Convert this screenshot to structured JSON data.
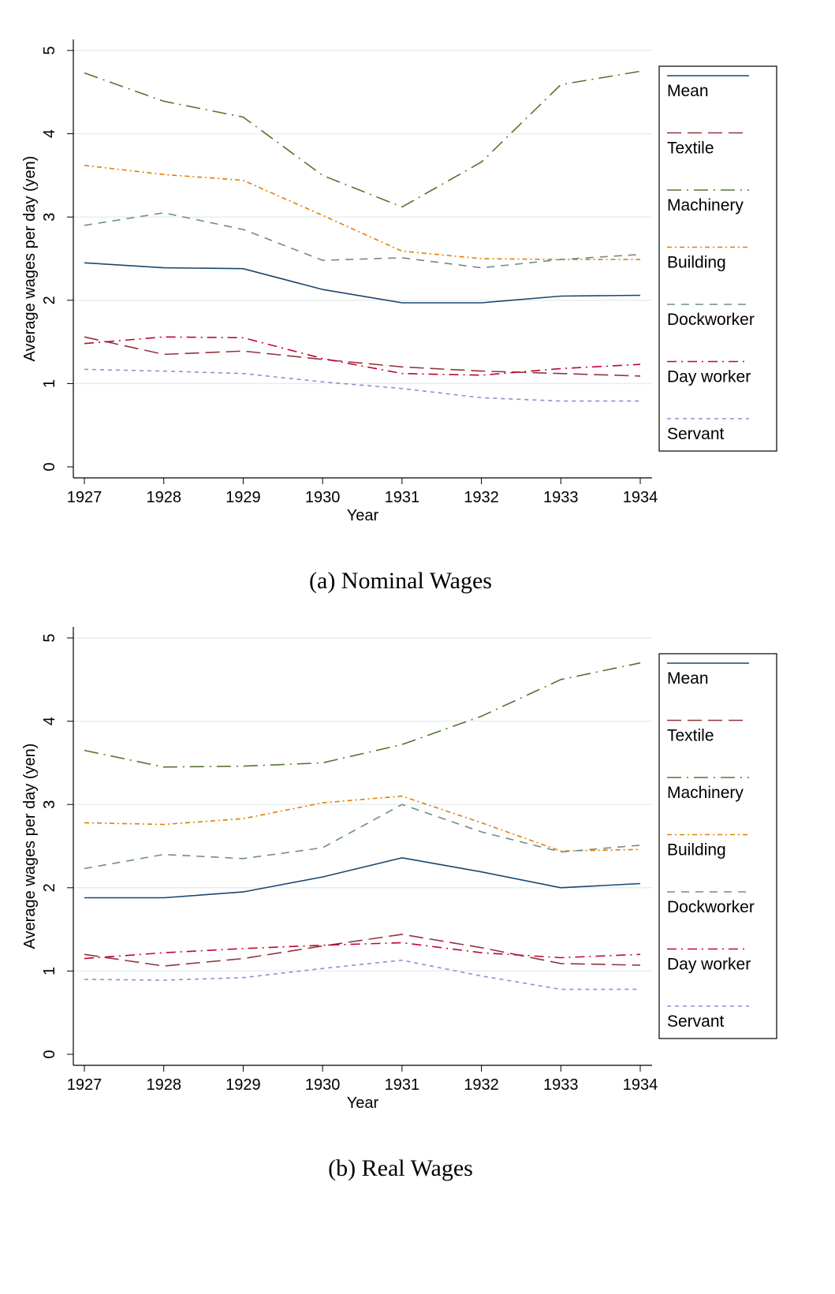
{
  "chart_data": [
    {
      "type": "line",
      "caption": "(a)  Nominal Wages",
      "xlabel": "Year",
      "ylabel": "Average wages per day (yen)",
      "x": [
        1927,
        1928,
        1929,
        1930,
        1931,
        1932,
        1933,
        1934
      ],
      "ylim": [
        0,
        5
      ],
      "yticks": [
        0,
        1,
        2,
        3,
        4,
        5
      ],
      "grid": true,
      "legend": "right",
      "series": [
        {
          "name": "Mean",
          "color": "#1a476f",
          "dash": "solid",
          "values": [
            2.45,
            2.39,
            2.38,
            2.13,
            1.97,
            1.97,
            2.05,
            2.06
          ]
        },
        {
          "name": "Textile",
          "color": "#90353b",
          "dash": "longdash",
          "values": [
            1.56,
            1.35,
            1.39,
            1.29,
            1.2,
            1.15,
            1.12,
            1.09
          ]
        },
        {
          "name": "Machinery",
          "color": "#55752f",
          "dash": "longdash-dot",
          "values": [
            4.73,
            4.39,
            4.2,
            3.5,
            3.12,
            3.66,
            4.59,
            4.75
          ]
        },
        {
          "name": "Building",
          "color": "#e37e00",
          "dash": "shortdash-dot",
          "values": [
            3.62,
            3.51,
            3.44,
            3.02,
            2.59,
            2.5,
            2.49,
            2.49
          ]
        },
        {
          "name": "Dockworker",
          "color": "#6e8e84",
          "dash": "dash",
          "values": [
            2.9,
            3.05,
            2.85,
            2.48,
            2.51,
            2.39,
            2.49,
            2.55
          ]
        },
        {
          "name": "Day worker",
          "color": "#c10534",
          "dash": "dash-dot",
          "values": [
            1.48,
            1.56,
            1.55,
            1.3,
            1.12,
            1.1,
            1.18,
            1.23
          ]
        },
        {
          "name": "Servant",
          "color": "#938dd2",
          "dash": "shortdash",
          "values": [
            1.17,
            1.15,
            1.12,
            1.02,
            0.94,
            0.83,
            0.79,
            0.79
          ]
        }
      ]
    },
    {
      "type": "line",
      "caption": "(b)  Real Wages",
      "xlabel": "Year",
      "ylabel": "Average wages per day (yen)",
      "x": [
        1927,
        1928,
        1929,
        1930,
        1931,
        1932,
        1933,
        1934
      ],
      "ylim": [
        0,
        5
      ],
      "yticks": [
        0,
        1,
        2,
        3,
        4,
        5
      ],
      "grid": true,
      "legend": "right",
      "series": [
        {
          "name": "Mean",
          "color": "#1a476f",
          "dash": "solid",
          "values": [
            1.88,
            1.88,
            1.95,
            2.13,
            2.36,
            2.19,
            2.0,
            2.05
          ]
        },
        {
          "name": "Textile",
          "color": "#90353b",
          "dash": "longdash",
          "values": [
            1.2,
            1.06,
            1.15,
            1.3,
            1.44,
            1.28,
            1.09,
            1.07
          ]
        },
        {
          "name": "Machinery",
          "color": "#55752f",
          "dash": "longdash-dot",
          "values": [
            3.65,
            3.45,
            3.46,
            3.5,
            3.72,
            4.06,
            4.5,
            4.7
          ]
        },
        {
          "name": "Building",
          "color": "#e37e00",
          "dash": "shortdash-dot",
          "values": [
            2.78,
            2.76,
            2.83,
            3.02,
            3.1,
            2.78,
            2.44,
            2.46
          ]
        },
        {
          "name": "Dockworker",
          "color": "#6e8e84",
          "dash": "dash",
          "values": [
            2.23,
            2.4,
            2.35,
            2.48,
            3.0,
            2.67,
            2.43,
            2.51
          ]
        },
        {
          "name": "Day worker",
          "color": "#c10534",
          "dash": "dash-dot",
          "values": [
            1.15,
            1.22,
            1.27,
            1.31,
            1.34,
            1.22,
            1.16,
            1.2
          ]
        },
        {
          "name": "Servant",
          "color": "#938dd2",
          "dash": "shortdash",
          "values": [
            0.9,
            0.89,
            0.92,
            1.03,
            1.13,
            0.94,
            0.78,
            0.78
          ]
        }
      ]
    }
  ]
}
